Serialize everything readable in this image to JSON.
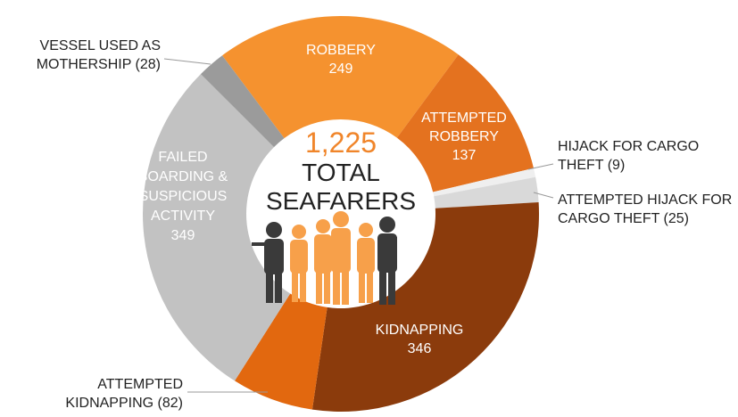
{
  "chart_data": {
    "type": "donut",
    "categories": [
      "ROBBERY",
      "ATTEMPTED ROBBERY",
      "HIJACK FOR CARGO THEFT",
      "ATTEMPTED HIJACK FOR CARGO THEFT",
      "KIDNAPPING",
      "ATTEMPTED KIDNAPPING",
      "FAILED BOARDING & SUSPICIOUS ACTIVITY",
      "VESSEL USED AS MOTHERSHIP"
    ],
    "values": [
      249,
      137,
      9,
      25,
      346,
      82,
      349,
      28
    ],
    "value_labels": [
      "249",
      "137",
      "(9)",
      "(25)",
      "346",
      "(82)",
      "349",
      "(28)"
    ],
    "colors": [
      "#f5922f",
      "#e4721f",
      "#efefef",
      "#d9d9d9",
      "#8b3b0c",
      "#e2680f",
      "#c2c2c2",
      "#9b9b9b"
    ],
    "total": {
      "value": 1225,
      "label": "1,225"
    },
    "center_lines": [
      "TOTAL",
      "SEAFARERS"
    ]
  }
}
